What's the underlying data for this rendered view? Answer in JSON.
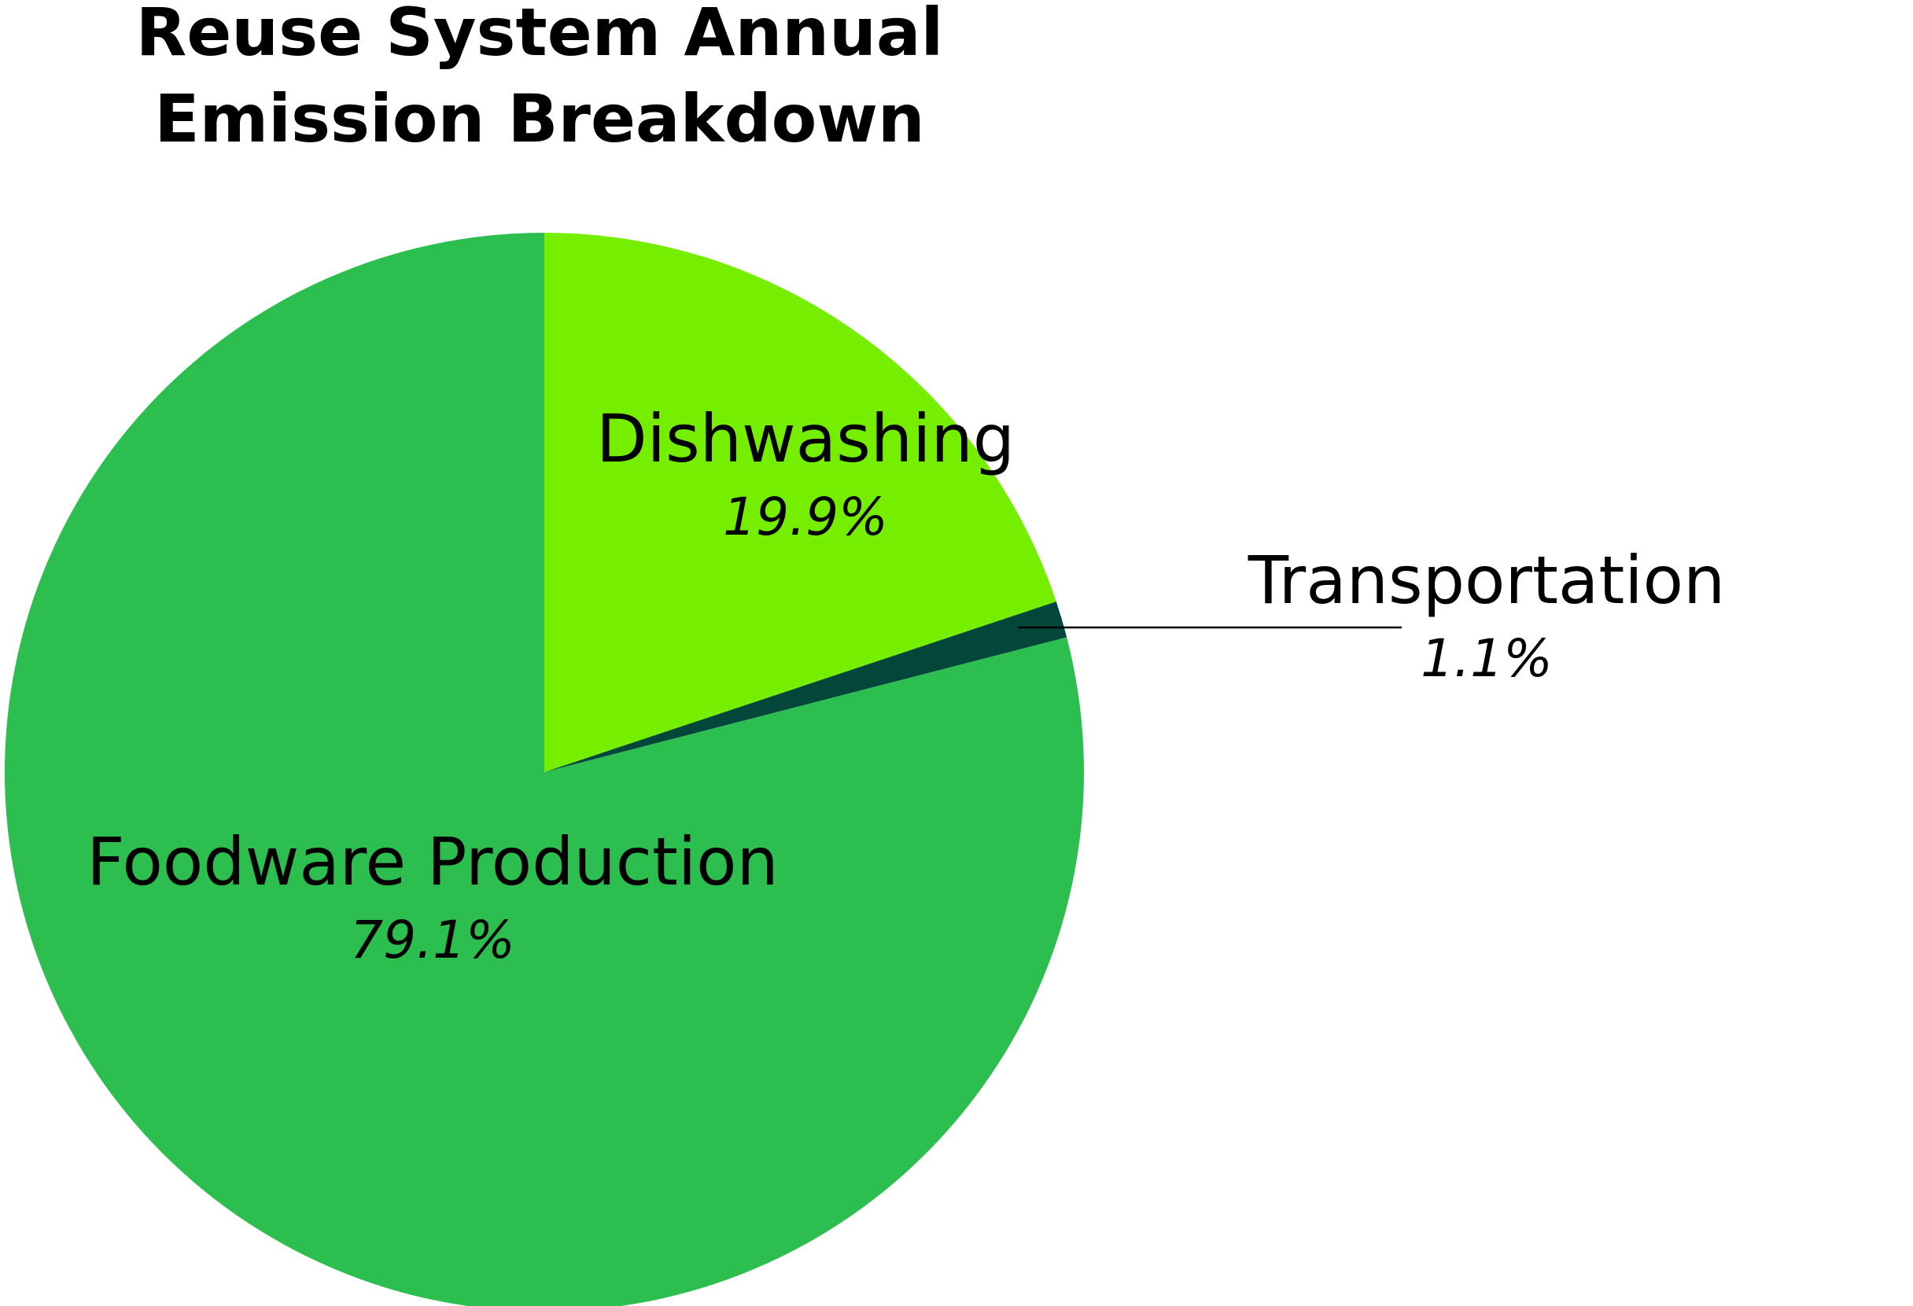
{
  "chart_data": {
    "type": "pie",
    "title": "Reuse System Annual Emission Breakdown",
    "categories": [
      "Dishwashing",
      "Transportation",
      "Foodware Production"
    ],
    "values": [
      19.9,
      1.1,
      79.1
    ],
    "value_labels": [
      "19.9%",
      "1.1%",
      "79.1%"
    ],
    "colors": [
      "#76ee00",
      "#03473a",
      "#2dbe50"
    ]
  }
}
